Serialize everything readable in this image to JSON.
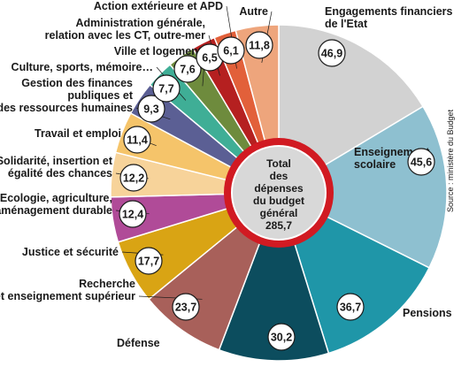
{
  "chart_data": {
    "type": "pie",
    "center_label": [
      "Total",
      "des",
      "dépenses",
      "du budget",
      "général",
      "285,7"
    ],
    "source": "Source : ministère du Budget",
    "slices": [
      {
        "label": [
          "Engagements financiers",
          "de l'Etat"
        ],
        "value": 46.9,
        "display": "46,9",
        "color": "#d2d2d2"
      },
      {
        "label": [
          "Enseignement",
          "scolaire"
        ],
        "value": 45.6,
        "display": "45,6",
        "color": "#8ec0d0"
      },
      {
        "label": [
          "Pensions"
        ],
        "value": 36.7,
        "display": "36,7",
        "color": "#1f96a8"
      },
      {
        "label": [
          "Défense"
        ],
        "value": 30.2,
        "display": "30,2",
        "color": "#0c4d5e"
      },
      {
        "label": [
          "Recherche",
          "et enseignement supérieur"
        ],
        "value": 23.7,
        "display": "23,7",
        "color": "#a8605a"
      },
      {
        "label": [
          "Justice et sécurité"
        ],
        "value": 17.7,
        "display": "17,7",
        "color": "#d9a414"
      },
      {
        "label": [
          "Ecologie, agriculture,",
          "aménagement durable"
        ],
        "value": 12.4,
        "display": "12,4",
        "color": "#b04b98"
      },
      {
        "label": [
          "Solidarité, insertion et",
          "égalité des chances"
        ],
        "value": 12.2,
        "display": "12,2",
        "color": "#f7d39a"
      },
      {
        "label": [
          "Travail et emploi"
        ],
        "value": 11.4,
        "display": "11,4",
        "color": "#f5c46a"
      },
      {
        "label": [
          "Gestion des finances",
          "publiques et",
          "des ressources humaines"
        ],
        "value": 9.3,
        "display": "9,3",
        "color": "#5b5f94"
      },
      {
        "label": [
          "Culture, sports, mémoire…"
        ],
        "value": 7.7,
        "display": "7,7",
        "color": "#3fae96"
      },
      {
        "label": [
          "Ville et logement"
        ],
        "value": 7.6,
        "display": "7,6",
        "color": "#6e8b3d"
      },
      {
        "label": [
          "Administration générale,",
          "relation avec les CT, outre-mer"
        ],
        "value": 6.5,
        "display": "6,5",
        "color": "#b52020"
      },
      {
        "label": [
          "Action extérieure et APD"
        ],
        "value": 6.1,
        "display": "6,1",
        "color": "#e2603a"
      },
      {
        "label": [
          "Autre"
        ],
        "value": 11.8,
        "display": "11,8",
        "color": "#eea57c"
      }
    ]
  }
}
